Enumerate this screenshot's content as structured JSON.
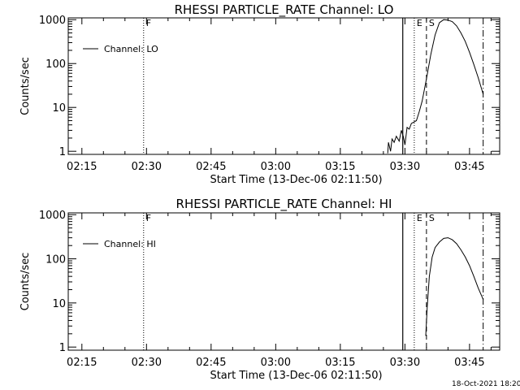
{
  "chart_data": [
    {
      "type": "line",
      "title": "RHESSI PARTICLE_RATE Channel: LO",
      "xlabel": "Start Time (13-Dec-06 02:11:50)",
      "ylabel": "Counts/sec",
      "x_ticks": [
        "02:15",
        "02:30",
        "02:45",
        "03:00",
        "03:15",
        "03:30",
        "03:45"
      ],
      "y_ticks": [
        "1",
        "10",
        "100",
        "1000"
      ],
      "y_scale": "log",
      "xlim": [
        "02:11:50",
        "03:52:00"
      ],
      "ylim": [
        0.85,
        1100
      ],
      "legend": {
        "label": "Channel: LO",
        "placement": "top-left"
      },
      "markers": [
        {
          "time": "02:29:20",
          "style": "dotted",
          "label": "F"
        },
        {
          "time": "03:29:30",
          "style": "solid",
          "label": ""
        },
        {
          "time": "03:32:10",
          "style": "dotted",
          "label": "E"
        },
        {
          "time": "03:35:00",
          "style": "dashed",
          "label": "S"
        },
        {
          "time": "03:48:10",
          "style": "dashdot",
          "label": ""
        }
      ],
      "series": [
        {
          "values": [
            [
              "03:26:00",
              0.9
            ],
            [
              "03:26:10",
              1.6
            ],
            [
              "03:26:40",
              1.0
            ],
            [
              "03:27:00",
              1.9
            ],
            [
              "03:27:30",
              1.6
            ],
            [
              "03:28:00",
              2.2
            ],
            [
              "03:28:40",
              1.7
            ],
            [
              "03:29:10",
              3.0
            ],
            [
              "03:29:40",
              2.1
            ],
            [
              "03:30:00",
              1.4
            ],
            [
              "03:30:30",
              3.5
            ],
            [
              "03:31:00",
              3.2
            ],
            [
              "03:31:30",
              4.3
            ],
            [
              "03:32:00",
              4.6
            ],
            [
              "03:32:40",
              5.0
            ],
            [
              "03:33:20",
              8.0
            ],
            [
              "03:34:00",
              14
            ],
            [
              "03:35:00",
              45
            ],
            [
              "03:36:00",
              160
            ],
            [
              "03:37:00",
              450
            ],
            [
              "03:38:00",
              850
            ],
            [
              "03:39:00",
              1000
            ],
            [
              "03:40:00",
              980
            ],
            [
              "03:41:00",
              900
            ],
            [
              "03:42:00",
              720
            ],
            [
              "03:43:00",
              500
            ],
            [
              "03:44:00",
              320
            ],
            [
              "03:45:00",
              180
            ],
            [
              "03:46:00",
              95
            ],
            [
              "03:47:00",
              48
            ],
            [
              "03:48:10",
              20
            ]
          ]
        }
      ]
    },
    {
      "type": "line",
      "title": "RHESSI PARTICLE_RATE Channel: HI",
      "xlabel": "Start Time (13-Dec-06 02:11:50)",
      "ylabel": "Counts/sec",
      "x_ticks": [
        "02:15",
        "02:30",
        "02:45",
        "03:00",
        "03:15",
        "03:30",
        "03:45"
      ],
      "y_ticks": [
        "1",
        "10",
        "100",
        "1000"
      ],
      "y_scale": "log",
      "xlim": [
        "02:11:50",
        "03:52:00"
      ],
      "ylim": [
        0.85,
        1100
      ],
      "legend": {
        "label": "Channel: HI",
        "placement": "top-left"
      },
      "markers": [
        {
          "time": "02:29:20",
          "style": "dotted",
          "label": "F"
        },
        {
          "time": "03:29:30",
          "style": "solid",
          "label": ""
        },
        {
          "time": "03:32:10",
          "style": "dotted",
          "label": "E"
        },
        {
          "time": "03:35:00",
          "style": "dashed",
          "label": "S"
        },
        {
          "time": "03:48:10",
          "style": "dashdot",
          "label": ""
        }
      ],
      "series": [
        {
          "values": [
            [
              "03:34:50",
              1.8
            ],
            [
              "03:35:10",
              8
            ],
            [
              "03:35:40",
              40
            ],
            [
              "03:36:20",
              110
            ],
            [
              "03:37:00",
              180
            ],
            [
              "03:38:00",
              240
            ],
            [
              "03:39:00",
              290
            ],
            [
              "03:40:00",
              300
            ],
            [
              "03:41:00",
              270
            ],
            [
              "03:42:00",
              220
            ],
            [
              "03:43:00",
              160
            ],
            [
              "03:44:00",
              110
            ],
            [
              "03:45:00",
              70
            ],
            [
              "03:46:00",
              40
            ],
            [
              "03:47:00",
              22
            ],
            [
              "03:48:10",
              12
            ]
          ]
        }
      ]
    }
  ],
  "footer": {
    "timestamp": "18-Oct-2021 18:20"
  }
}
